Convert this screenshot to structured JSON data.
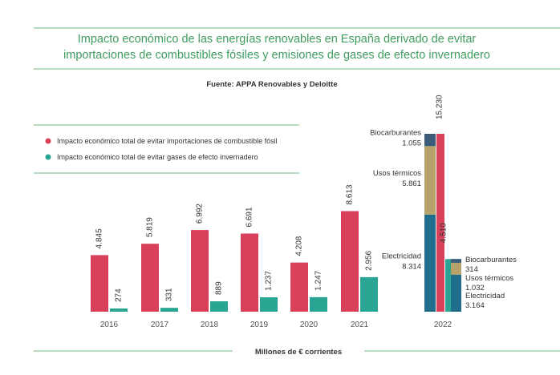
{
  "title_lines": [
    "Impacto económico de las energías renovables en España derivado de evitar",
    "importaciones de combustibles fósiles y emisiones de gases de efecto invernadero"
  ],
  "source": "Fuente: APPA Renovables y Deloitte",
  "footer": "Millones de € corrientes",
  "colors": {
    "fossil": "#d9405a",
    "emissions": "#2aa594",
    "electricidad": "#1f6e8e",
    "usos_termicos": "#b7a36a",
    "biocarburantes": "#3c5b79",
    "green_line": "#8cc79a"
  },
  "chart_data": {
    "type": "bar",
    "categories": [
      "2016",
      "2017",
      "2018",
      "2019",
      "2020",
      "2021"
    ],
    "series": [
      {
        "name": "Impacto económico total de evitar importaciones de combustible fósil",
        "values": [
          4845,
          5819,
          6992,
          6691,
          4208,
          8613
        ],
        "labels": [
          "4.845",
          "5.819",
          "6.992",
          "6.691",
          "4.208",
          "8.613"
        ]
      },
      {
        "name": "Impacto económico total de evitar gases de efecto invernadero",
        "values": [
          274,
          331,
          889,
          1237,
          1247,
          2956
        ],
        "labels": [
          "274",
          "331",
          "889",
          "1.237",
          "1.247",
          "2.956"
        ]
      }
    ],
    "ylim": [
      0,
      15230
    ],
    "year_2022": {
      "category": "2022",
      "fossil": {
        "total": 15230,
        "total_label": "15.230",
        "segments": [
          {
            "name": "Electricidad",
            "value": 8314,
            "value_label": "8.314",
            "color_key": "electricidad"
          },
          {
            "name": "Usos térmicos",
            "value": 5861,
            "value_label": "5.861",
            "color_key": "usos_termicos"
          },
          {
            "name": "Biocarburantes",
            "value": 1055,
            "value_label": "1.055",
            "color_key": "biocarburantes"
          }
        ]
      },
      "emissions": {
        "total": 4510,
        "total_label": "4.510",
        "segments": [
          {
            "name": "Electricidad",
            "value": 3164,
            "value_label": "3.164",
            "color_key": "electricidad"
          },
          {
            "name": "Usos térmicos",
            "value": 1032,
            "value_label": "1.032",
            "color_key": "usos_termicos"
          },
          {
            "name": "Biocarburantes",
            "value": 314,
            "value_label": "314",
            "color_key": "biocarburantes"
          }
        ]
      }
    }
  }
}
